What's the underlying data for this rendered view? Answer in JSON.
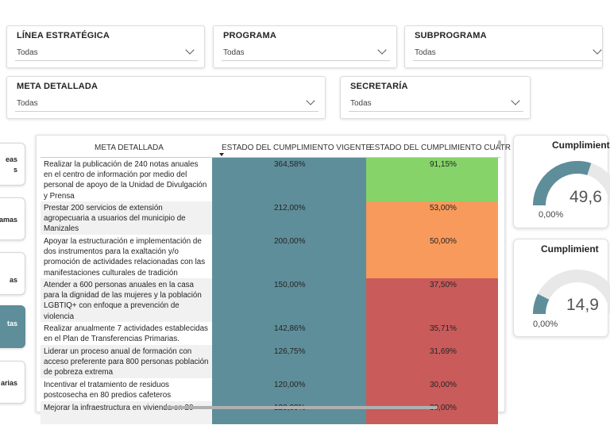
{
  "filters": {
    "linea": {
      "title": "LÍNEA ESTRATÉGICA",
      "value": "Todas"
    },
    "programa": {
      "title": "PROGRAMA",
      "value": "Todas"
    },
    "subprograma": {
      "title": "SUBPROGRAMA",
      "value": "Todas"
    },
    "meta": {
      "title": "META DETALLADA",
      "value": "Todas"
    },
    "secretaria": {
      "title": "SECRETARÍA",
      "value": "Todas"
    }
  },
  "nav": [
    {
      "label1": "eas",
      "label2": "s"
    },
    {
      "label1": "amas"
    },
    {
      "label1": "as"
    },
    {
      "label1": "tas",
      "active": true
    },
    {
      "label1": "arias"
    }
  ],
  "table": {
    "headers": [
      "META DETALLADA",
      "ESTADO DEL CUMPLIMIENTO VIGENTE",
      "ESTADO DEL CUMPLIMIENTO CUATR"
    ],
    "rows": [
      {
        "desc": "Realizar la publicación de 240 notas anuales en el centro de información por medio del personal de apoyo de la Unidad de Divulgación y Prensa",
        "vigente": "364,58%",
        "cuatr": "91,15%",
        "color": "#86d36a"
      },
      {
        "desc": "Prestar 200 servicios de extensión agropecuaria a usuarios del municipio de Manizales",
        "vigente": "212,00%",
        "cuatr": "53,00%",
        "color": "#f79a5b"
      },
      {
        "desc": "Apoyar la estructuración e implementación de dos instrumentos para la exaltación y/o promoción de actividades relacionadas con las manifestaciones culturales de tradición",
        "vigente": "200,00%",
        "cuatr": "50,00%",
        "color": "#f79a5b"
      },
      {
        "desc": "Atender a 600 personas anuales en la casa para la dignidad de las mujeres y la población LGBTIQ+ con enfoque a prevención de violencia",
        "vigente": "150,00%",
        "cuatr": "37,50%",
        "color": "#c95b5b"
      },
      {
        "desc": "Realizar anualmente 7 actividades establecidas en el Plan de Transferencias Primarias.",
        "vigente": "142,86%",
        "cuatr": "35,71%",
        "color": "#c95b5b"
      },
      {
        "desc": "Liderar un proceso anual de formación con acceso preferente para 800 personas población de pobreza extrema",
        "vigente": "126,75%",
        "cuatr": "31,69%",
        "color": "#c95b5b"
      },
      {
        "desc": "Incentivar el tratamiento de residuos postcosecha en 80 predios cafeteros",
        "vigente": "120,00%",
        "cuatr": "30,00%",
        "color": "#c95b5b"
      },
      {
        "desc": "Mejorar la infraestructura en vivienda en 20",
        "vigente": "120,00%",
        "cuatr": "30,00%",
        "color": "#c95b5b"
      }
    ],
    "vigente_color": "#5e8e9a"
  },
  "gauges": [
    {
      "title": "Cumplimient",
      "min": "0,00%",
      "value": "49,6",
      "fill": 0.6
    },
    {
      "title": "Cumplimient",
      "min": "0,00%",
      "value": "14,9",
      "fill": 0.15
    }
  ]
}
